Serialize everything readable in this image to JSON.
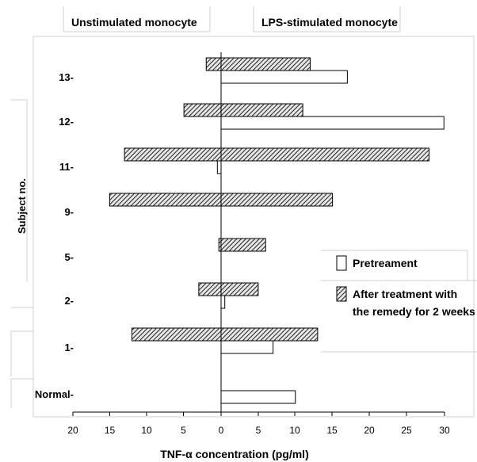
{
  "chart_data": {
    "type": "bar",
    "orientation": "horizontal",
    "panel_left_title": "Unstimulated monocyte",
    "panel_right_title": "LPS-stimulated monocyte",
    "ylabel": "Subject no.",
    "xlabel": "TNF-α concentration (pg/ml)",
    "categories": [
      "13-",
      "12-",
      "11-",
      "9-",
      "5-",
      "2-",
      "1-",
      "Normal-"
    ],
    "x_tick_labels": [
      "20",
      "15",
      "10",
      "5",
      "0",
      "5",
      "10",
      "15",
      "20",
      "25",
      "30"
    ],
    "xlim_left": [
      20,
      0
    ],
    "xlim_right": [
      0,
      30
    ],
    "series": [
      {
        "name": "Pretreament",
        "fill": "#ffffff",
        "unstimulated": [
          0,
          0,
          0.5,
          0,
          0,
          0,
          0,
          0
        ],
        "lps_stimulated": [
          17,
          30,
          0,
          0,
          0,
          0.5,
          7,
          10
        ]
      },
      {
        "name": "After treatment with the remedy for 2 weeks",
        "fill": "hatched",
        "unstimulated": [
          2,
          5,
          13,
          15,
          0.3,
          3,
          12,
          0
        ],
        "lps_stimulated": [
          12,
          11,
          28,
          15,
          6,
          5,
          13,
          0
        ]
      }
    ],
    "legend": {
      "position": "right",
      "items": [
        {
          "lines": [
            "Pretreament"
          ]
        },
        {
          "lines": [
            "After treatment with",
            "the remedy for 2 weeks"
          ]
        }
      ]
    }
  }
}
